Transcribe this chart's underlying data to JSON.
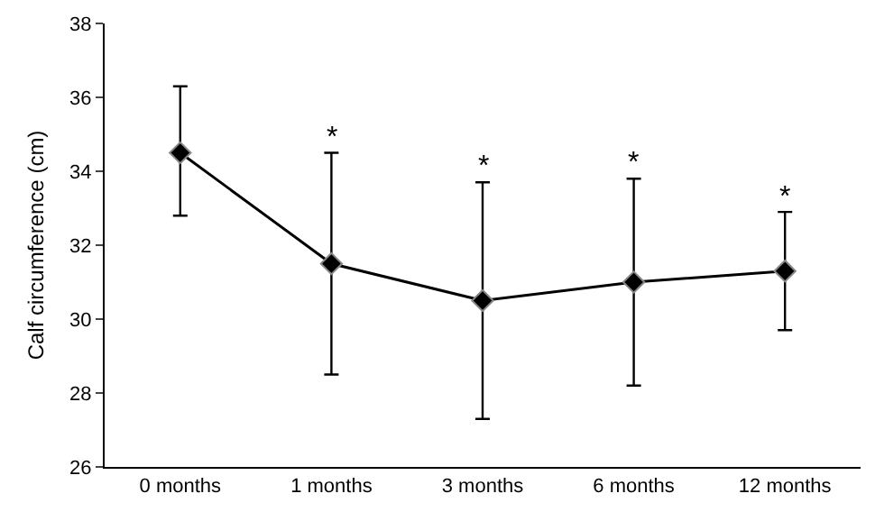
{
  "chart_data": {
    "type": "line",
    "ylabel": "Calf circumference (cm)",
    "categories": [
      "0 months",
      "1 months",
      "3 months",
      "6 months",
      "12 months"
    ],
    "series": [
      {
        "color": "#000000",
        "values": [
          34.5,
          31.5,
          30.5,
          31.0,
          31.3
        ],
        "errors": [
          [
            32.8,
            36.3
          ],
          [
            28.5,
            34.5
          ],
          [
            27.3,
            33.7
          ],
          [
            28.2,
            33.8
          ],
          [
            29.7,
            32.9
          ]
        ]
      }
    ],
    "ylim": [
      26,
      38
    ],
    "yticks": [
      26,
      28,
      30,
      32,
      34,
      36,
      38
    ],
    "grid": false,
    "marker": "diamond",
    "line_style": "solid",
    "annotations": [
      {
        "text": "*",
        "x": "1 months",
        "y": 34.5
      },
      {
        "text": "*",
        "x": "3 months",
        "y": 33.7
      },
      {
        "text": "*",
        "x": "6 months",
        "y": 33.8
      },
      {
        "text": "*",
        "x": "12 months",
        "y": 32.9
      }
    ]
  }
}
